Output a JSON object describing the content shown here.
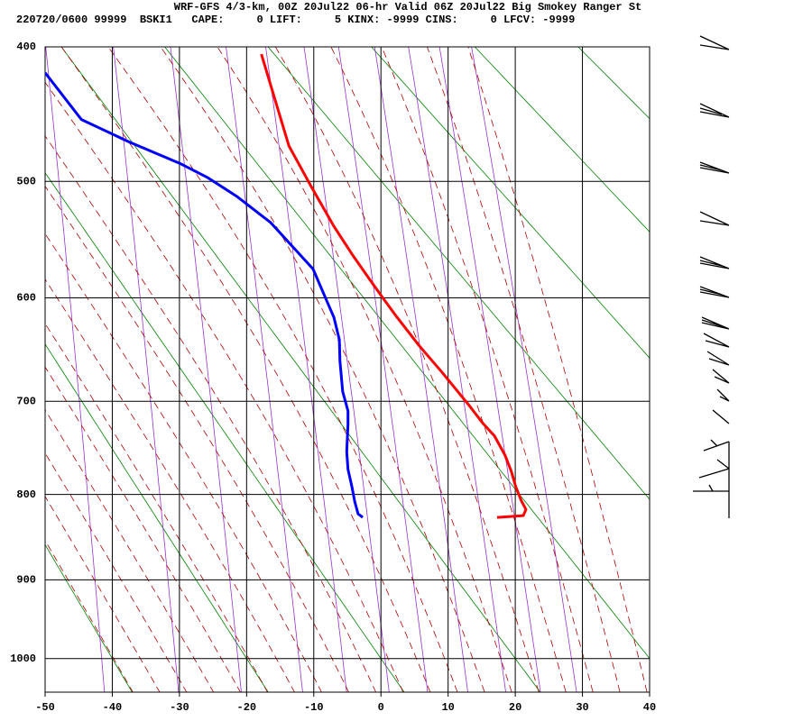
{
  "chart_data": {
    "type": "skewt",
    "title": "WRF-GFS 4/3-km, 00Z 20Jul22 06-hr Valid 06Z 20Jul22 Big Smokey Ranger St",
    "subtitle": "220720/0600 99999  BSKI1   CAPE:     0 LIFT:     5 KINX: -9999 CINS:     0 LFCV: -9999",
    "xlim": [
      -50,
      40
    ],
    "xticks": [
      -50,
      -40,
      -30,
      -20,
      -10,
      0,
      10,
      20,
      30,
      40
    ],
    "ylim": [
      1045,
      400
    ],
    "yticks": [
      400,
      500,
      600,
      700,
      800,
      900,
      1000
    ],
    "yscale": "pkappa",
    "grid": true,
    "series": [
      {
        "color": "#ff0000",
        "pressure": [
          826,
          824,
          817,
          807,
          792,
          774,
          757,
          736,
          723,
          704,
          671,
          645,
          618,
          601,
          584,
          561,
          537,
          504,
          472,
          405
        ],
        "temperature": [
          17.3,
          21.2,
          21.6,
          20.9,
          20.1,
          19.4,
          18.5,
          16.9,
          15.2,
          13.1,
          9.1,
          5.7,
          2.4,
          0.4,
          -1.6,
          -4.3,
          -7.0,
          -10.4,
          -13.7,
          -17.8
        ]
      },
      {
        "color": "#0000ff",
        "pressure": [
          826,
          822,
          808,
          792,
          772,
          753,
          724,
          710,
          690,
          660,
          639,
          618,
          608,
          574,
          534,
          512,
          497,
          486,
          469,
          452,
          418
        ],
        "temperature": [
          -2.7,
          -3.4,
          -3.9,
          -4.3,
          -4.9,
          -5.1,
          -4.9,
          -4.9,
          -5.7,
          -6.1,
          -6.2,
          -7.0,
          -7.7,
          -10.1,
          -16.4,
          -21.5,
          -25.8,
          -29.8,
          -37.5,
          -44.6,
          -50.0
        ]
      }
    ]
  }
}
